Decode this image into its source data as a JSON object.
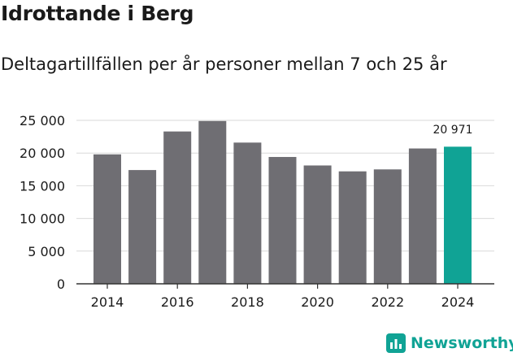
{
  "title": "Idrottande i Berg",
  "subtitle": "Deltagartillfällen per år personer mellan 7 och 25 år",
  "brand": {
    "name": "Newsworthy"
  },
  "colors": {
    "bar": "#6f6e73",
    "highlight": "#10a395",
    "grid": "#d9d9d9",
    "axis": "#333333",
    "text": "#1a1a1a"
  },
  "chart_data": {
    "type": "bar",
    "categories": [
      "2014",
      "2015",
      "2016",
      "2017",
      "2018",
      "2019",
      "2020",
      "2021",
      "2022",
      "2023",
      "2024"
    ],
    "values": [
      19800,
      17400,
      23300,
      24900,
      21600,
      19400,
      18100,
      17200,
      17500,
      20700,
      20971
    ],
    "highlight_index": 10,
    "highlight_label": "20 971",
    "xtick_labels": [
      "2014",
      "",
      "2016",
      "",
      "2018",
      "",
      "2020",
      "",
      "2022",
      "",
      "2024"
    ],
    "yticks": [
      0,
      5000,
      10000,
      15000,
      20000,
      25000
    ],
    "ytick_labels": [
      "0",
      "5 000",
      "10 000",
      "15 000",
      "20 000",
      "25 000"
    ],
    "ylim": [
      0,
      25000
    ],
    "xlabel": "",
    "ylabel": "",
    "grid": true
  }
}
